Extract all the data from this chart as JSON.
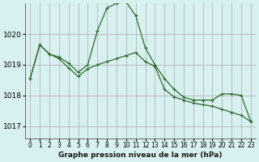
{
  "title": "Graphe pression niveau de la mer (hPa)",
  "bg_color": "#d8f0f0",
  "grid_color": "#aaaaaa",
  "line_color": "#2d6a2d",
  "marker_color": "#2d6a2d",
  "x_labels": [
    "0",
    "1",
    "2",
    "3",
    "4",
    "5",
    "6",
    "7",
    "8",
    "9",
    "10",
    "11",
    "12",
    "13",
    "14",
    "15",
    "16",
    "17",
    "18",
    "19",
    "20",
    "21",
    "22",
    "23"
  ],
  "y_ticks": [
    1017,
    1018,
    1019,
    1020
  ],
  "ylim": [
    1016.6,
    1021.0
  ],
  "xlim": [
    -0.5,
    23.5
  ],
  "series1": [
    1018.55,
    1019.65,
    1019.35,
    1019.25,
    1019.05,
    1018.75,
    1019.0,
    1020.1,
    1020.85,
    1021.0,
    1021.05,
    1020.6,
    1019.55,
    1019.0,
    1018.55,
    1018.2,
    1017.95,
    1017.85,
    1017.85,
    1017.85,
    1018.05,
    1018.05,
    1018.0,
    1017.15
  ],
  "series2": [
    1018.55,
    1019.65,
    1019.35,
    1019.2,
    1018.9,
    1018.62,
    1018.87,
    1019.0,
    1019.1,
    1019.2,
    1019.3,
    1019.4,
    1019.1,
    1018.95,
    1018.2,
    1017.95,
    1017.85,
    1017.75,
    1017.7,
    1017.65,
    1017.55,
    1017.45,
    1017.35,
    1017.15
  ]
}
